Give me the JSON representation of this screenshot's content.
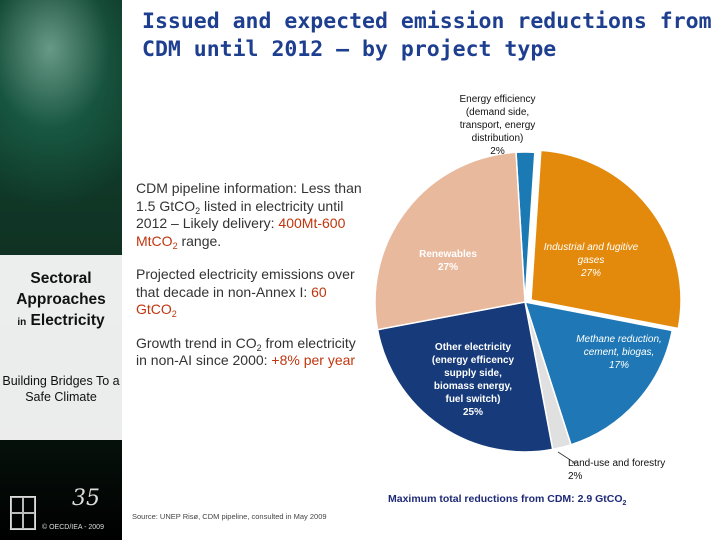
{
  "title": "Issued and expected emission reductions from CDM until 2012 – by project type",
  "sidebar": {
    "heading_lines": [
      "Sectoral",
      "Approaches"
    ],
    "heading_small": "in",
    "heading_last": "Electricity",
    "subtitle": "Building Bridges To a Safe Climate",
    "copyright": "© OECD/IEA - 2009",
    "logo_35": "35"
  },
  "bullets": [
    {
      "pre": "CDM pipeline information: Less than 1.5 GtCO",
      "sub": "2",
      "mid": " listed in electricity until 2012 – Likely delivery: ",
      "hl": "400Mt-600 MtCO",
      "hl_sub": "2",
      "post": " range."
    },
    {
      "pre": "Projected electricity emissions over that decade in non-Annex I: ",
      "hl": "60 GtCO",
      "hl_sub": "2"
    },
    {
      "pre": "Growth trend in CO",
      "sub": "2",
      "mid": " from electricity in non-AI since 2000: ",
      "hl": "+8% per year"
    }
  ],
  "chart_data": {
    "type": "pie",
    "slices": [
      {
        "label_lines": [
          "Energy efficiency",
          "(demand side,",
          "transport, energy",
          "distribution)",
          "2%"
        ],
        "value": 2,
        "color": "#1b79b4"
      },
      {
        "label_lines": [
          "Industrial and fugitive",
          "gases",
          "27%"
        ],
        "value": 27,
        "color": "#e38a0c"
      },
      {
        "label_lines": [
          "Methane reduction,",
          "cement, biogas,",
          "17%"
        ],
        "value": 17,
        "color": "#1f78b5"
      },
      {
        "label_lines": [
          "Land-use and forestry",
          "2%"
        ],
        "value": 2,
        "color": "#e0e0e0"
      },
      {
        "label_lines": [
          "Other electricity",
          "(energy efficency",
          "supply side,",
          "biomass energy,",
          "fuel switch)",
          "25%"
        ],
        "value": 25,
        "color": "#163a7a"
      },
      {
        "label_lines": [
          "Renewables",
          "27%"
        ],
        "value": 27,
        "color": "#e8b99d"
      }
    ],
    "total_label": "Maximum total reductions from CDM: 2.9 GtCO",
    "total_label_sub": "2"
  },
  "source": "Source: UNEP Risø, CDM pipeline, consulted in May 2009"
}
